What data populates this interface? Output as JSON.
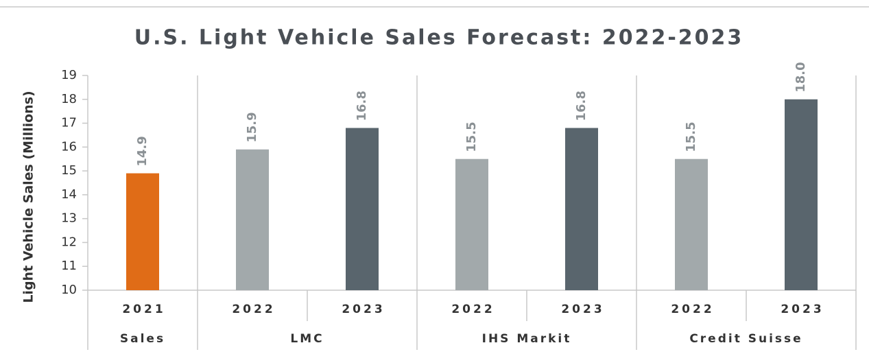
{
  "chart_data": {
    "type": "bar",
    "title": "U.S. Light Vehicle Sales Forecast: 2022-2023",
    "y_axis_label": "Light Vehicle Sales (Millions)",
    "groups": [
      {
        "name": "Sales",
        "categories": [
          "2021"
        ]
      },
      {
        "name": "LMC",
        "categories": [
          "2022",
          "2023"
        ]
      },
      {
        "name": "IHS Markit",
        "categories": [
          "2022",
          "2023"
        ]
      },
      {
        "name": "Credit Suisse",
        "categories": [
          "2022",
          "2023"
        ]
      }
    ],
    "values": [
      14.9,
      15.9,
      16.8,
      15.5,
      16.8,
      15.5,
      18.0
    ],
    "value_labels": [
      "14.9",
      "15.9",
      "16.8",
      "15.5",
      "16.8",
      "15.5",
      "18.0"
    ],
    "colors": [
      "#e06c17",
      "#a2a9ab",
      "#59656d",
      "#a2a9ab",
      "#59656d",
      "#a2a9ab",
      "#59656d"
    ],
    "ylim": [
      10,
      19
    ],
    "yticks": [
      10,
      11,
      12,
      13,
      14,
      15,
      16,
      17,
      18,
      19
    ]
  }
}
